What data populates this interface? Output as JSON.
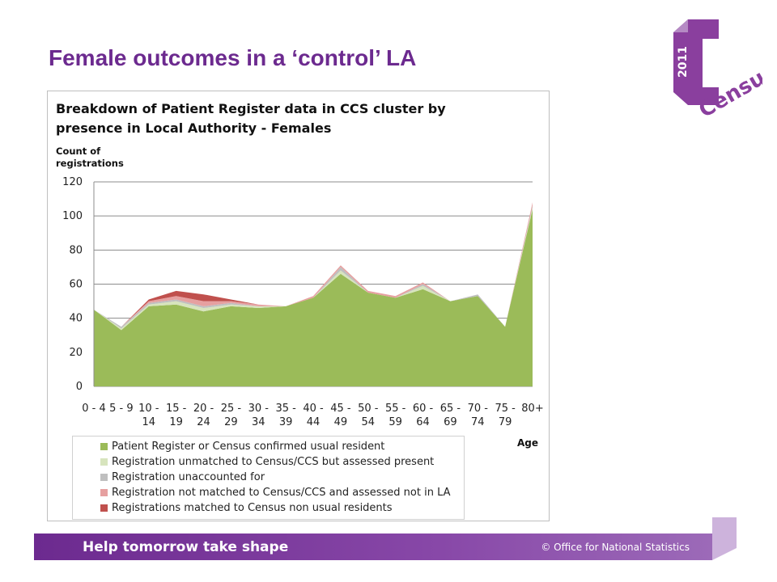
{
  "slide": {
    "title": "Female outcomes in a ‘control’ LA",
    "logo": {
      "year": "2011",
      "word": "Census",
      "icon": "census-2011-logo"
    },
    "footer": {
      "slogan": "Help tomorrow take shape",
      "copyright": "© Office for National Statistics"
    },
    "colors": {
      "brand_purple": "#6c2a8f",
      "logo_purple": "#8a3f9e"
    }
  },
  "chart_data": {
    "type": "area",
    "stacked": true,
    "title_lines": [
      "Breakdown of Patient Register data in CCS cluster by",
      "presence in Local Authority - Females"
    ],
    "ylabel_lines": [
      "Count of",
      "registrations"
    ],
    "xlabel": "Age",
    "ylim": [
      0,
      120
    ],
    "yticks": [
      "0",
      "20",
      "40",
      "60",
      "80",
      "100",
      "120"
    ],
    "grid": true,
    "legend_position": "bottom",
    "categories": [
      [
        "0 - 4",
        ""
      ],
      [
        "5 - 9",
        ""
      ],
      [
        "10 -",
        "14"
      ],
      [
        "15 -",
        "19"
      ],
      [
        "20 -",
        "24"
      ],
      [
        "25 -",
        "29"
      ],
      [
        "30 -",
        "34"
      ],
      [
        "35 -",
        "39"
      ],
      [
        "40 -",
        "44"
      ],
      [
        "45 -",
        "49"
      ],
      [
        "50 -",
        "54"
      ],
      [
        "55 -",
        "59"
      ],
      [
        "60 -",
        "64"
      ],
      [
        "65 -",
        "69"
      ],
      [
        "70 -",
        "74"
      ],
      [
        "75 -",
        "79"
      ],
      [
        "80+",
        ""
      ]
    ],
    "series": [
      {
        "name": "Patient Register or Census confirmed usual resident",
        "color": "#9bbb59",
        "values": [
          45,
          33,
          47,
          48,
          44,
          47,
          46,
          47,
          52,
          66,
          55,
          52,
          57,
          50,
          53,
          35,
          104
        ]
      },
      {
        "name": "Registration unmatched to Census/CCS but assessed present",
        "color": "#d7e4bd",
        "values": [
          0,
          1,
          1,
          2,
          2,
          1,
          1,
          0,
          0,
          2,
          0,
          0,
          2,
          0,
          0,
          0,
          1
        ]
      },
      {
        "name": "Registration unaccounted for",
        "color": "#bfbfbf",
        "values": [
          0,
          1,
          1,
          1,
          1,
          1,
          0,
          0,
          0,
          2,
          0,
          0,
          1,
          0,
          1,
          0,
          1
        ]
      },
      {
        "name": "Registration not matched to Census/CCS and assessed not in LA",
        "color": "#e6a0a0",
        "values": [
          0,
          0,
          1,
          2,
          3,
          1,
          1,
          0,
          1,
          1,
          1,
          1,
          1,
          0,
          0,
          0,
          2
        ]
      },
      {
        "name": "Registrations matched to Census non usual residents",
        "color": "#c0504d",
        "values": [
          0,
          0,
          1,
          3,
          4,
          1,
          0,
          0,
          0,
          0,
          0,
          0,
          0,
          0,
          0,
          0,
          0
        ]
      }
    ]
  }
}
